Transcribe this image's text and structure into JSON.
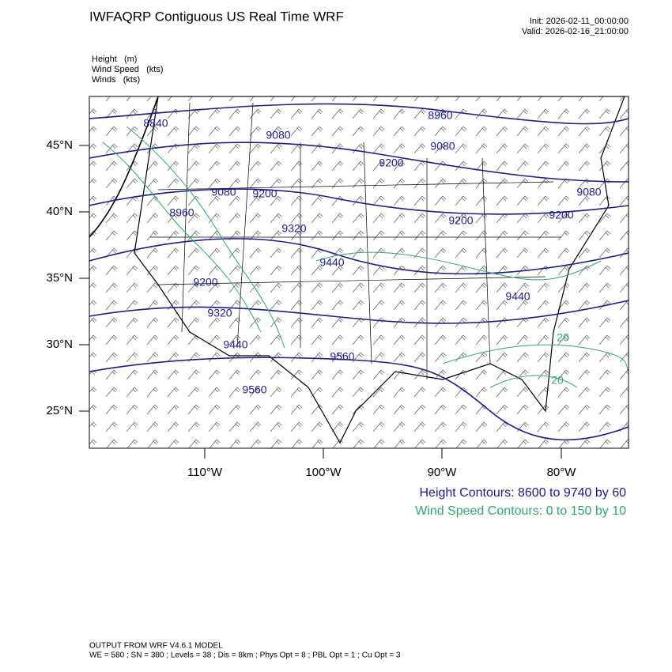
{
  "title": "IWFAQRP Contiguous US Real Time WRF",
  "init": "Init: 2026-02-11_00:00:00",
  "valid": "Valid: 2026-02-16_21:00:00",
  "fields": [
    "Height   (m)",
    "Wind Speed   (kts)",
    "Winds   (kts)"
  ],
  "map": {
    "lat_labels": [
      "45°N",
      "40°N",
      "35°N",
      "30°N",
      "25°N"
    ],
    "lon_labels": [
      "110°W",
      "100°W",
      "90°W",
      "80°W"
    ],
    "contour_labels": [
      8840,
      8960,
      9080,
      9080,
      9200,
      9080,
      9200,
      9080,
      8960,
      9200,
      9200,
      9320,
      9440,
      9200,
      9320,
      9440,
      9440,
      9560,
      9560,
      20,
      20
    ]
  },
  "legend": [
    "Height Contours: 8600 to 9740 by 60",
    "Wind Speed Contours: 0 to 150 by 10"
  ],
  "footer": [
    "OUTPUT FROM WRF V4.6.1 MODEL",
    "WE = 580 ; SN = 380 ; Levels = 38 ; Dis = 8km ; Phys Opt = 8 ; PBL Opt = 1 ; Cu Opt = 3"
  ]
}
